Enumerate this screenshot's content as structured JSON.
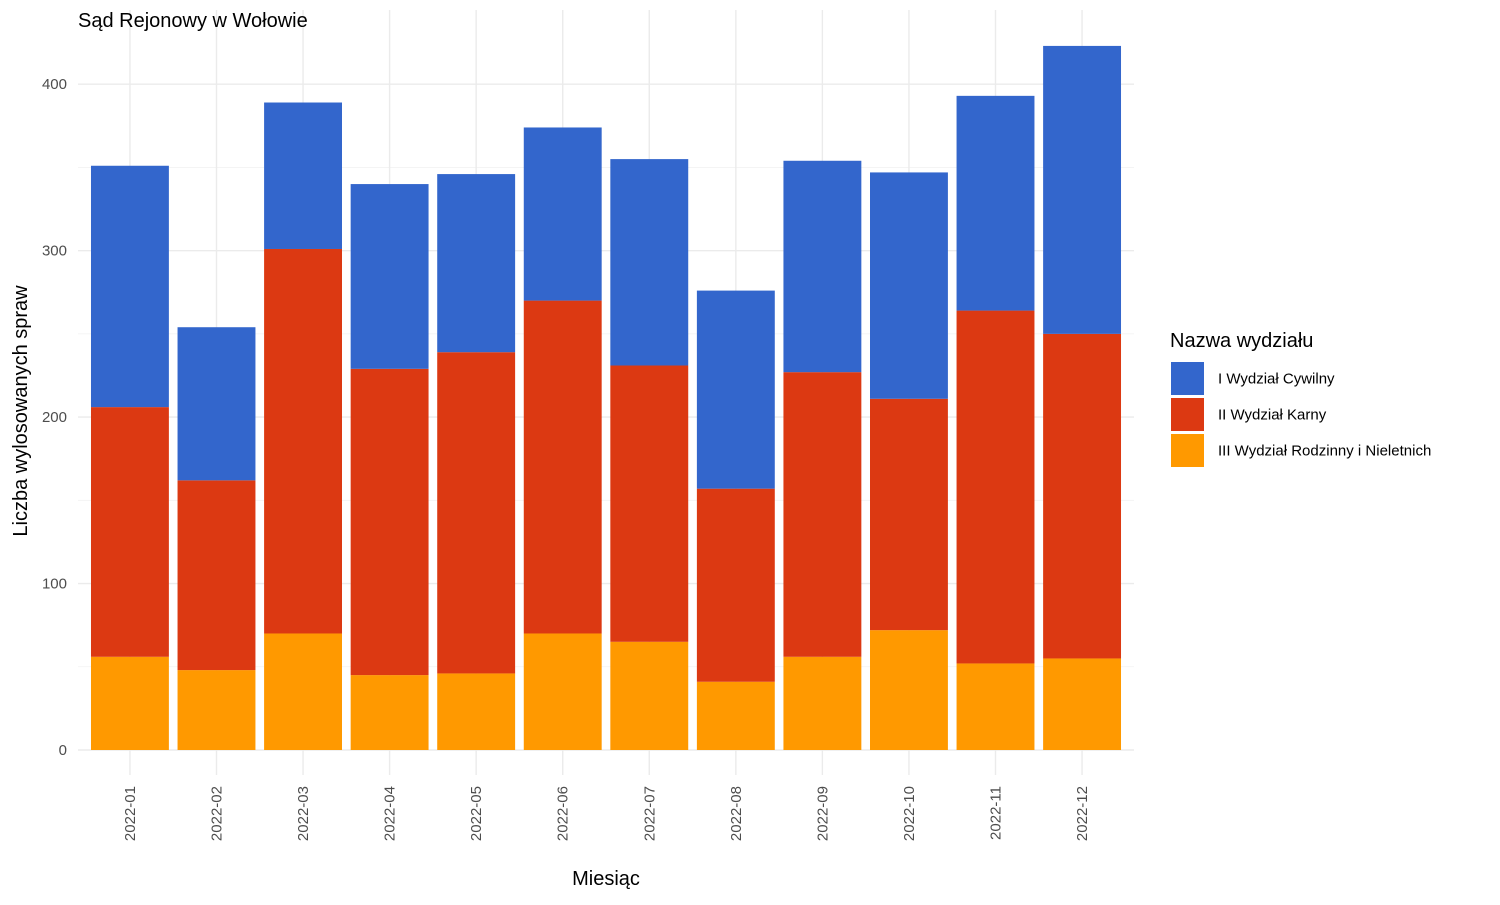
{
  "chart_data": {
    "type": "bar",
    "stacked": true,
    "title": "Sąd Rejonowy w Wołowie",
    "xlabel": "Miesiąc",
    "ylabel": "Liczba wylosowanych spraw",
    "ylim": [
      0,
      430
    ],
    "yticks": [
      0,
      100,
      200,
      300,
      400
    ],
    "grid": true,
    "legend_position": "right",
    "legend_title": "Nazwa wydziału",
    "categories": [
      "2022-01",
      "2022-02",
      "2022-03",
      "2022-04",
      "2022-05",
      "2022-06",
      "2022-07",
      "2022-08",
      "2022-09",
      "2022-10",
      "2022-11",
      "2022-12"
    ],
    "series": [
      {
        "name": "I Wydział Cywilny",
        "color": "#3366cc",
        "values": [
          145,
          92,
          88,
          111,
          107,
          104,
          124,
          119,
          127,
          136,
          129,
          173
        ]
      },
      {
        "name": "II Wydział Karny",
        "color": "#dc3912",
        "values": [
          150,
          114,
          231,
          184,
          193,
          200,
          166,
          116,
          171,
          139,
          212,
          195
        ]
      },
      {
        "name": "III Wydział Rodzinny i Nieletnich",
        "color": "#ff9900",
        "values": [
          56,
          48,
          70,
          45,
          46,
          70,
          65,
          41,
          56,
          72,
          52,
          55
        ]
      }
    ]
  }
}
